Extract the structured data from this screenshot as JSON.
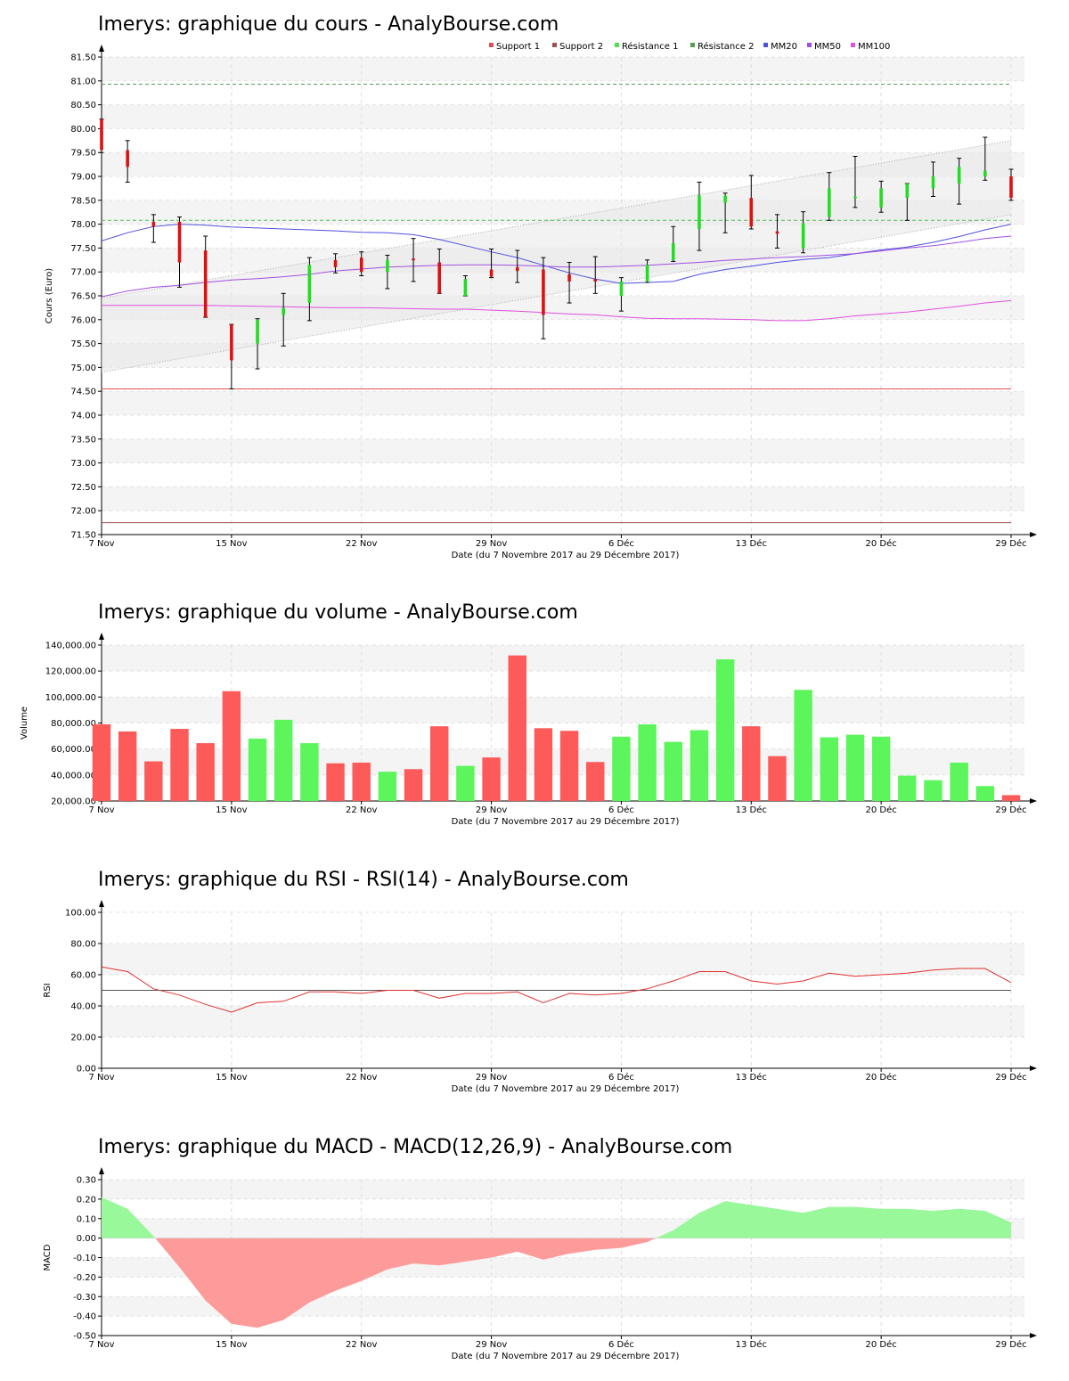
{
  "chart_data": [
    {
      "type": "candlestick",
      "title": "Imerys: graphique du cours - AnalyBourse.com",
      "xlabel": "Date (du 7 Novembre 2017 au 29 Décembre 2017)",
      "ylabel": "Cours (Euro)",
      "ylim": [
        71.5,
        81.5
      ],
      "yticks": [
        "71.50",
        "72.00",
        "72.50",
        "73.00",
        "73.50",
        "74.00",
        "74.50",
        "75.00",
        "75.50",
        "76.00",
        "76.50",
        "77.00",
        "77.50",
        "78.00",
        "78.50",
        "79.00",
        "79.50",
        "80.00",
        "80.50",
        "81.00",
        "81.50"
      ],
      "x_ticks": [
        {
          "index": 0,
          "label": "7 Nov"
        },
        {
          "index": 5,
          "label": "15 Nov"
        },
        {
          "index": 10,
          "label": "22 Nov"
        },
        {
          "index": 15,
          "label": "29 Nov"
        },
        {
          "index": 20,
          "label": "6 Déc"
        },
        {
          "index": 25,
          "label": "13 Déc"
        },
        {
          "index": 30,
          "label": "20 Déc"
        },
        {
          "index": 35,
          "label": "29 Déc"
        }
      ],
      "legend": [
        {
          "name": "Support 1",
          "color": "#e05050"
        },
        {
          "name": "Support 2",
          "color": "#a05050"
        },
        {
          "name": "Résistance 1",
          "color": "#50e050"
        },
        {
          "name": "Résistance 2",
          "color": "#50a050"
        },
        {
          "name": "MM20",
          "color": "#5050e0"
        },
        {
          "name": "MM50",
          "color": "#a050e0"
        },
        {
          "name": "MM100",
          "color": "#e050e0"
        }
      ],
      "legend_position": "top-right",
      "levels": {
        "support1": 74.55,
        "support2": 71.75,
        "resistance1": 78.08,
        "resistance2": 80.93
      },
      "trend_channel": {
        "upper": [
          76.45,
          79.75
        ],
        "lower": [
          74.9,
          78.2
        ]
      },
      "candles": [
        {
          "o": 80.2,
          "h": 80.2,
          "l": 79.5,
          "c": 79.55
        },
        {
          "o": 79.55,
          "h": 79.75,
          "l": 78.88,
          "c": 79.2
        },
        {
          "o": 78.05,
          "h": 78.2,
          "l": 77.62,
          "c": 77.95
        },
        {
          "o": 78.05,
          "h": 78.15,
          "l": 76.68,
          "c": 77.2
        },
        {
          "o": 77.45,
          "h": 77.75,
          "l": 76.05,
          "c": 76.05
        },
        {
          "o": 75.9,
          "h": 75.9,
          "l": 74.55,
          "c": 75.15
        },
        {
          "o": 75.5,
          "h": 76.02,
          "l": 74.97,
          "c": 76.0
        },
        {
          "o": 76.1,
          "h": 76.55,
          "l": 75.45,
          "c": 76.25
        },
        {
          "o": 76.35,
          "h": 77.3,
          "l": 75.98,
          "c": 77.15
        },
        {
          "o": 77.25,
          "h": 77.38,
          "l": 76.98,
          "c": 77.1
        },
        {
          "o": 77.3,
          "h": 77.42,
          "l": 76.92,
          "c": 77.0
        },
        {
          "o": 77.0,
          "h": 77.35,
          "l": 76.65,
          "c": 77.25
        },
        {
          "o": 77.28,
          "h": 77.7,
          "l": 76.8,
          "c": 77.25
        },
        {
          "o": 77.2,
          "h": 77.48,
          "l": 76.55,
          "c": 76.55
        },
        {
          "o": 76.5,
          "h": 76.92,
          "l": 76.5,
          "c": 76.85
        },
        {
          "o": 77.05,
          "h": 77.48,
          "l": 76.88,
          "c": 76.9
        },
        {
          "o": 77.1,
          "h": 77.45,
          "l": 76.78,
          "c": 77.02
        },
        {
          "o": 77.05,
          "h": 77.3,
          "l": 75.6,
          "c": 76.1
        },
        {
          "o": 76.95,
          "h": 77.2,
          "l": 76.35,
          "c": 76.8
        },
        {
          "o": 76.85,
          "h": 77.32,
          "l": 76.55,
          "c": 76.8
        },
        {
          "o": 76.5,
          "h": 76.88,
          "l": 76.18,
          "c": 76.8
        },
        {
          "o": 76.8,
          "h": 77.25,
          "l": 76.78,
          "c": 77.15
        },
        {
          "o": 77.25,
          "h": 77.95,
          "l": 77.22,
          "c": 77.6
        },
        {
          "o": 77.9,
          "h": 78.88,
          "l": 77.45,
          "c": 78.6
        },
        {
          "o": 78.45,
          "h": 78.65,
          "l": 77.82,
          "c": 78.6
        },
        {
          "o": 78.55,
          "h": 79.02,
          "l": 77.9,
          "c": 77.95
        },
        {
          "o": 77.85,
          "h": 78.2,
          "l": 77.5,
          "c": 77.8
        },
        {
          "o": 77.5,
          "h": 78.26,
          "l": 77.4,
          "c": 78.02
        },
        {
          "o": 78.15,
          "h": 79.08,
          "l": 78.08,
          "c": 78.75
        },
        {
          "o": 78.55,
          "h": 79.42,
          "l": 78.35,
          "c": 78.58
        },
        {
          "o": 78.35,
          "h": 78.9,
          "l": 78.25,
          "c": 78.75
        },
        {
          "o": 78.55,
          "h": 78.85,
          "l": 78.08,
          "c": 78.85
        },
        {
          "o": 78.75,
          "h": 79.3,
          "l": 78.58,
          "c": 79.0
        },
        {
          "o": 78.85,
          "h": 79.38,
          "l": 78.42,
          "c": 79.2
        },
        {
          "o": 79.0,
          "h": 79.82,
          "l": 78.92,
          "c": 79.12
        },
        {
          "o": 79.0,
          "h": 79.15,
          "l": 78.5,
          "c": 78.55
        }
      ],
      "series": [
        {
          "name": "MM20",
          "values": [
            77.65,
            77.82,
            77.95,
            78.0,
            77.98,
            77.94,
            77.92,
            77.9,
            77.88,
            77.86,
            77.83,
            77.82,
            77.78,
            77.68,
            77.55,
            77.42,
            77.3,
            77.14,
            76.98,
            76.85,
            76.76,
            76.78,
            76.8,
            76.95,
            77.05,
            77.12,
            77.2,
            77.26,
            77.3,
            77.38,
            77.46,
            77.52,
            77.62,
            77.74,
            77.88,
            78.0
          ]
        },
        {
          "name": "MM50",
          "values": [
            76.48,
            76.6,
            76.68,
            76.72,
            76.78,
            76.83,
            76.86,
            76.9,
            76.95,
            77.02,
            77.06,
            77.1,
            77.12,
            77.14,
            77.15,
            77.15,
            77.14,
            77.12,
            77.1,
            77.1,
            77.12,
            77.14,
            77.17,
            77.2,
            77.24,
            77.27,
            77.3,
            77.32,
            77.35,
            77.38,
            77.44,
            77.5,
            77.55,
            77.62,
            77.7,
            77.75
          ]
        },
        {
          "name": "MM100",
          "values": [
            76.3,
            76.3,
            76.3,
            76.3,
            76.3,
            76.29,
            76.28,
            76.27,
            76.26,
            76.25,
            76.25,
            76.24,
            76.23,
            76.22,
            76.22,
            76.2,
            76.18,
            76.15,
            76.12,
            76.1,
            76.06,
            76.03,
            76.02,
            76.02,
            76.01,
            76.0,
            75.98,
            75.98,
            76.02,
            76.08,
            76.12,
            76.16,
            76.22,
            76.28,
            76.35,
            76.4
          ]
        }
      ]
    },
    {
      "type": "bar",
      "title": "Imerys: graphique du volume - AnalyBourse.com",
      "xlabel": "Date (du 7 Novembre 2017 au 29 Décembre 2017)",
      "ylabel": "Volume",
      "ylim": [
        20000,
        140000
      ],
      "yticks": [
        "20,000.00",
        "40,000.00",
        "60,000.00",
        "80,000.00",
        "100,000.00",
        "120,000.00",
        "140,000.00"
      ],
      "x_ticks": [
        {
          "index": 0,
          "label": "7 Nov"
        },
        {
          "index": 5,
          "label": "15 Nov"
        },
        {
          "index": 10,
          "label": "22 Nov"
        },
        {
          "index": 15,
          "label": "29 Nov"
        },
        {
          "index": 20,
          "label": "6 Déc"
        },
        {
          "index": 25,
          "label": "13 Déc"
        },
        {
          "index": 30,
          "label": "20 Déc"
        },
        {
          "index": 35,
          "label": "29 Déc"
        }
      ],
      "values": [
        79000,
        73500,
        50500,
        75500,
        64500,
        104500,
        68000,
        82500,
        64500,
        49000,
        49500,
        42500,
        44500,
        77500,
        47000,
        53500,
        132000,
        76000,
        74000,
        50000,
        69500,
        79000,
        65500,
        74500,
        129000,
        77500,
        54500,
        105500,
        69000,
        71000,
        69500,
        39500,
        36000,
        49500,
        31500,
        24500
      ],
      "directions": [
        "down",
        "down",
        "down",
        "down",
        "down",
        "down",
        "up",
        "up",
        "up",
        "down",
        "down",
        "up",
        "down",
        "down",
        "up",
        "down",
        "down",
        "down",
        "down",
        "down",
        "up",
        "up",
        "up",
        "up",
        "up",
        "down",
        "down",
        "up",
        "up",
        "up",
        "up",
        "up",
        "up",
        "up",
        "up",
        "down"
      ]
    },
    {
      "type": "line",
      "title": "Imerys: graphique du RSI - RSI(14) - AnalyBourse.com",
      "xlabel": "Date (du 7 Novembre 2017 au 29 Décembre 2017)",
      "ylabel": "RSI",
      "ylim": [
        0,
        100
      ],
      "yticks": [
        "0.00",
        "20.00",
        "40.00",
        "60.00",
        "80.00",
        "100.00"
      ],
      "reference_line": 50,
      "x_ticks": [
        {
          "index": 0,
          "label": "7 Nov"
        },
        {
          "index": 5,
          "label": "15 Nov"
        },
        {
          "index": 10,
          "label": "22 Nov"
        },
        {
          "index": 15,
          "label": "29 Nov"
        },
        {
          "index": 20,
          "label": "6 Déc"
        },
        {
          "index": 25,
          "label": "13 Déc"
        },
        {
          "index": 30,
          "label": "20 Déc"
        },
        {
          "index": 35,
          "label": "29 Déc"
        }
      ],
      "series": [
        {
          "values": [
            65,
            62,
            51,
            47,
            41,
            36,
            42,
            43,
            49,
            49,
            48,
            50,
            50,
            45,
            48,
            48,
            49,
            42,
            48,
            47,
            48,
            51,
            56,
            62,
            62,
            56,
            54,
            56,
            61,
            59,
            60,
            61,
            63,
            64,
            64,
            55
          ]
        }
      ]
    },
    {
      "type": "area",
      "title": "Imerys: graphique du MACD - MACD(12,26,9) - AnalyBourse.com",
      "xlabel": "Date (du 7 Novembre 2017 au 29 Décembre 2017)",
      "ylabel": "MACD",
      "ylim": [
        -0.5,
        0.3
      ],
      "yticks": [
        "-0.50",
        "-0.40",
        "-0.30",
        "-0.20",
        "-0.10",
        "0.00",
        "0.10",
        "0.20",
        "0.30"
      ],
      "x_ticks": [
        {
          "index": 0,
          "label": "7 Nov"
        },
        {
          "index": 5,
          "label": "15 Nov"
        },
        {
          "index": 10,
          "label": "22 Nov"
        },
        {
          "index": 15,
          "label": "29 Nov"
        },
        {
          "index": 20,
          "label": "6 Déc"
        },
        {
          "index": 25,
          "label": "13 Déc"
        },
        {
          "index": 30,
          "label": "20 Déc"
        },
        {
          "index": 35,
          "label": "29 Déc"
        }
      ],
      "series": [
        {
          "values": [
            0.21,
            0.15,
            0.01,
            -0.15,
            -0.32,
            -0.44,
            -0.46,
            -0.42,
            -0.33,
            -0.27,
            -0.22,
            -0.16,
            -0.13,
            -0.14,
            -0.12,
            -0.1,
            -0.07,
            -0.11,
            -0.08,
            -0.06,
            -0.05,
            -0.02,
            0.04,
            0.13,
            0.19,
            0.17,
            0.15,
            0.13,
            0.16,
            0.16,
            0.15,
            0.15,
            0.14,
            0.15,
            0.14,
            0.08
          ]
        }
      ]
    }
  ]
}
